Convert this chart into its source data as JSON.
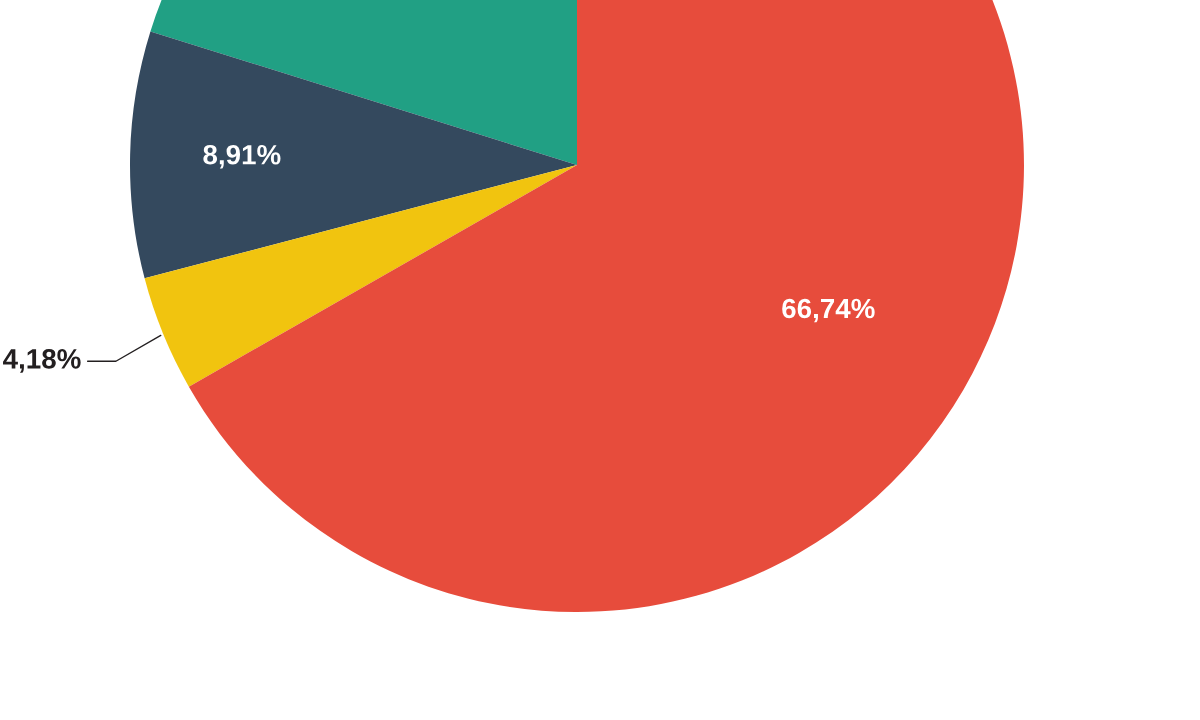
{
  "chart_data": {
    "type": "pie",
    "categories": [
      null,
      null,
      null,
      null
    ],
    "values": [
      20.17,
      8.91,
      4.18,
      66.74
    ],
    "colors": [
      "#21a084",
      "#34495e",
      "#f1c40f",
      "#e74c3c"
    ],
    "value_labels": [
      null,
      "8,91%",
      "4,18%",
      "66,74%"
    ]
  }
}
